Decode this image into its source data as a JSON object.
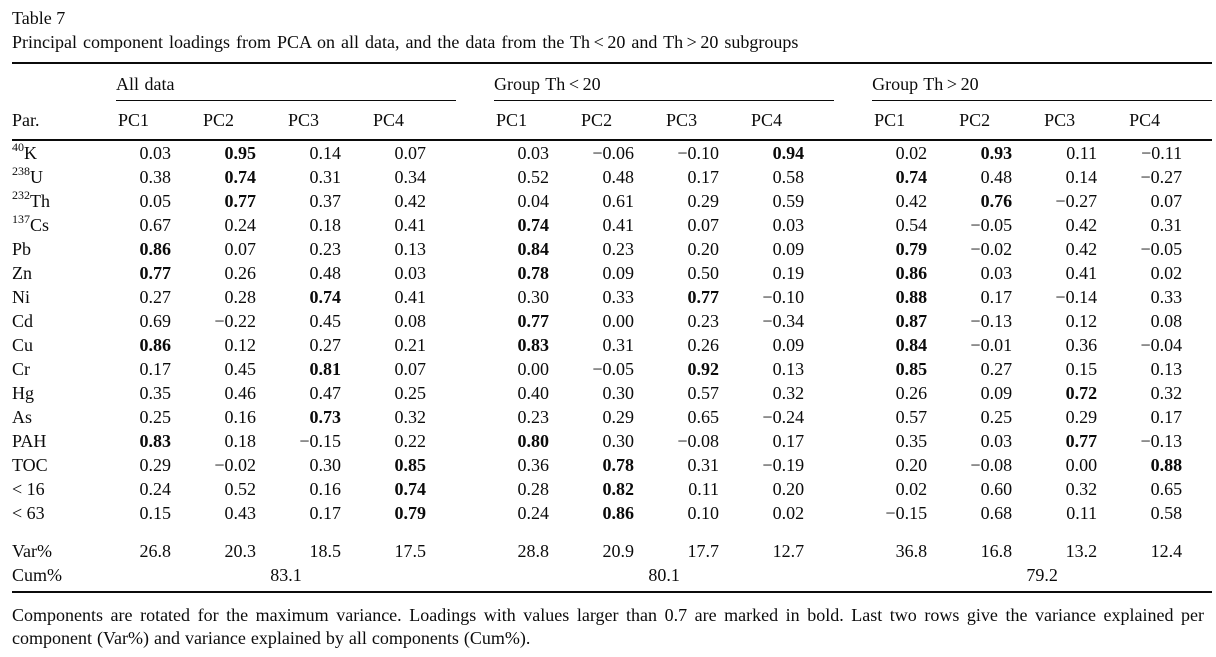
{
  "page": {
    "title": "Table 7",
    "caption": "Principal component loadings from PCA on all data, and the data from the Th < 20 and Th > 20 subgroups",
    "footnote": "Components are rotated for the maximum variance. Loadings with values larger than 0.7 are marked in bold. Last two rows give the variance explained per component (Var%) and variance explained by all components (Cum%)."
  },
  "table": {
    "par_header": "Par.",
    "groups": [
      {
        "label": "All data",
        "pc_headers": [
          "PC1",
          "PC2",
          "PC3",
          "PC4"
        ]
      },
      {
        "label": "Group Th < 20",
        "pc_headers": [
          "PC1",
          "PC2",
          "PC3",
          "PC4"
        ]
      },
      {
        "label": "Group Th > 20",
        "pc_headers": [
          "PC1",
          "PC2",
          "PC3",
          "PC4"
        ]
      }
    ],
    "rows": [
      {
        "label_sup": "40",
        "label": "K",
        "values": [
          "0.03",
          "0.95",
          "0.14",
          "0.07",
          "0.03",
          "−0.06",
          "−0.10",
          "0.94",
          "0.02",
          "0.93",
          "0.11",
          "−0.11"
        ],
        "bold": [
          1,
          7,
          9
        ]
      },
      {
        "label_sup": "238",
        "label": "U",
        "values": [
          "0.38",
          "0.74",
          "0.31",
          "0.34",
          "0.52",
          "0.48",
          "0.17",
          "0.58",
          "0.74",
          "0.48",
          "0.14",
          "−0.27"
        ],
        "bold": [
          1,
          8
        ]
      },
      {
        "label_sup": "232",
        "label": "Th",
        "values": [
          "0.05",
          "0.77",
          "0.37",
          "0.42",
          "0.04",
          "0.61",
          "0.29",
          "0.59",
          "0.42",
          "0.76",
          "−0.27",
          "0.07"
        ],
        "bold": [
          1,
          9
        ]
      },
      {
        "label_sup": "137",
        "label": "Cs",
        "values": [
          "0.67",
          "0.24",
          "0.18",
          "0.41",
          "0.74",
          "0.41",
          "0.07",
          "0.03",
          "0.54",
          "−0.05",
          "0.42",
          "0.31"
        ],
        "bold": [
          4
        ]
      },
      {
        "label": "Pb",
        "values": [
          "0.86",
          "0.07",
          "0.23",
          "0.13",
          "0.84",
          "0.23",
          "0.20",
          "0.09",
          "0.79",
          "−0.02",
          "0.42",
          "−0.05"
        ],
        "bold": [
          0,
          4,
          8
        ]
      },
      {
        "label": "Zn",
        "values": [
          "0.77",
          "0.26",
          "0.48",
          "0.03",
          "0.78",
          "0.09",
          "0.50",
          "0.19",
          "0.86",
          "0.03",
          "0.41",
          "0.02"
        ],
        "bold": [
          0,
          4,
          8
        ]
      },
      {
        "label": "Ni",
        "values": [
          "0.27",
          "0.28",
          "0.74",
          "0.41",
          "0.30",
          "0.33",
          "0.77",
          "−0.10",
          "0.88",
          "0.17",
          "−0.14",
          "0.33"
        ],
        "bold": [
          2,
          6,
          8
        ]
      },
      {
        "label": "Cd",
        "values": [
          "0.69",
          "−0.22",
          "0.45",
          "0.08",
          "0.77",
          "0.00",
          "0.23",
          "−0.34",
          "0.87",
          "−0.13",
          "0.12",
          "0.08"
        ],
        "bold": [
          4,
          8
        ]
      },
      {
        "label": "Cu",
        "values": [
          "0.86",
          "0.12",
          "0.27",
          "0.21",
          "0.83",
          "0.31",
          "0.26",
          "0.09",
          "0.84",
          "−0.01",
          "0.36",
          "−0.04"
        ],
        "bold": [
          0,
          4,
          8
        ]
      },
      {
        "label": "Cr",
        "values": [
          "0.17",
          "0.45",
          "0.81",
          "0.07",
          "0.00",
          "−0.05",
          "0.92",
          "0.13",
          "0.85",
          "0.27",
          "0.15",
          "0.13"
        ],
        "bold": [
          2,
          6,
          8
        ]
      },
      {
        "label": "Hg",
        "values": [
          "0.35",
          "0.46",
          "0.47",
          "0.25",
          "0.40",
          "0.30",
          "0.57",
          "0.32",
          "0.26",
          "0.09",
          "0.72",
          "0.32"
        ],
        "bold": [
          10
        ]
      },
      {
        "label": "As",
        "values": [
          "0.25",
          "0.16",
          "0.73",
          "0.32",
          "0.23",
          "0.29",
          "0.65",
          "−0.24",
          "0.57",
          "0.25",
          "0.29",
          "0.17"
        ],
        "bold": [
          2
        ]
      },
      {
        "label": "PAH",
        "values": [
          "0.83",
          "0.18",
          "−0.15",
          "0.22",
          "0.80",
          "0.30",
          "−0.08",
          "0.17",
          "0.35",
          "0.03",
          "0.77",
          "−0.13"
        ],
        "bold": [
          0,
          4,
          10
        ]
      },
      {
        "label": "TOC",
        "values": [
          "0.29",
          "−0.02",
          "0.30",
          "0.85",
          "0.36",
          "0.78",
          "0.31",
          "−0.19",
          "0.20",
          "−0.08",
          "0.00",
          "0.88"
        ],
        "bold": [
          3,
          5,
          11
        ]
      },
      {
        "label": "< 16",
        "values": [
          "0.24",
          "0.52",
          "0.16",
          "0.74",
          "0.28",
          "0.82",
          "0.11",
          "0.20",
          "0.02",
          "0.60",
          "0.32",
          "0.65"
        ],
        "bold": [
          3,
          5
        ]
      },
      {
        "label": "< 63",
        "values": [
          "0.15",
          "0.43",
          "0.17",
          "0.79",
          "0.24",
          "0.86",
          "0.10",
          "0.02",
          "−0.15",
          "0.68",
          "0.11",
          "0.58"
        ],
        "bold": [
          3,
          5
        ]
      }
    ],
    "var_row": {
      "label": "Var%",
      "values": [
        "26.8",
        "20.3",
        "18.5",
        "17.5",
        "28.8",
        "20.9",
        "17.7",
        "12.7",
        "36.8",
        "16.8",
        "13.2",
        "12.4"
      ]
    },
    "cum_row": {
      "label": "Cum%",
      "values": [
        "83.1",
        "80.1",
        "79.2"
      ]
    }
  },
  "colors": {
    "text": "#0b0b0b",
    "rule": "#0b0b0b",
    "background": "#ffffff"
  }
}
